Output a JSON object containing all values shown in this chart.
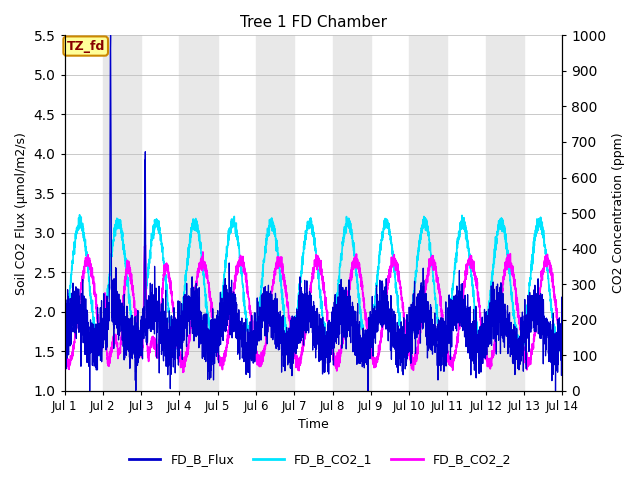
{
  "title": "Tree 1 FD Chamber",
  "xlabel": "Time",
  "ylabel_left": "Soil CO2 Flux (μmol/m2/s)",
  "ylabel_right": "CO2 Concentration (ppm)",
  "ylim_left": [
    1.0,
    5.5
  ],
  "ylim_right": [
    0,
    1000
  ],
  "yticks_left": [
    1.0,
    1.5,
    2.0,
    2.5,
    3.0,
    3.5,
    4.0,
    4.5,
    5.0,
    5.5
  ],
  "yticks_right": [
    0,
    100,
    200,
    300,
    400,
    500,
    600,
    700,
    800,
    900,
    1000
  ],
  "xticklabels": [
    "Jul 1",
    "Jul 2",
    "Jul 3",
    "Jul 4",
    "Jul 5",
    "Jul 6",
    "Jul 7",
    "Jul 8",
    "Jul 9",
    "Jul 10",
    "Jul 11",
    "Jul 12",
    "Jul 13",
    "Jul 14"
  ],
  "colors": {
    "flux": "#0000CC",
    "co2_1": "#00E5FF",
    "co2_2": "#FF00FF",
    "annotation_bg": "#FFFF99",
    "annotation_border": "#CC8800",
    "annotation_text": "#880000",
    "grid_bg_band": "#E8E8E8"
  },
  "legend_labels": [
    "FD_B_Flux",
    "FD_B_CO2_1",
    "FD_B_CO2_2"
  ],
  "annotation_text": "TZ_fd",
  "random_seed": 42,
  "n_days": 13,
  "points_per_day": 288
}
